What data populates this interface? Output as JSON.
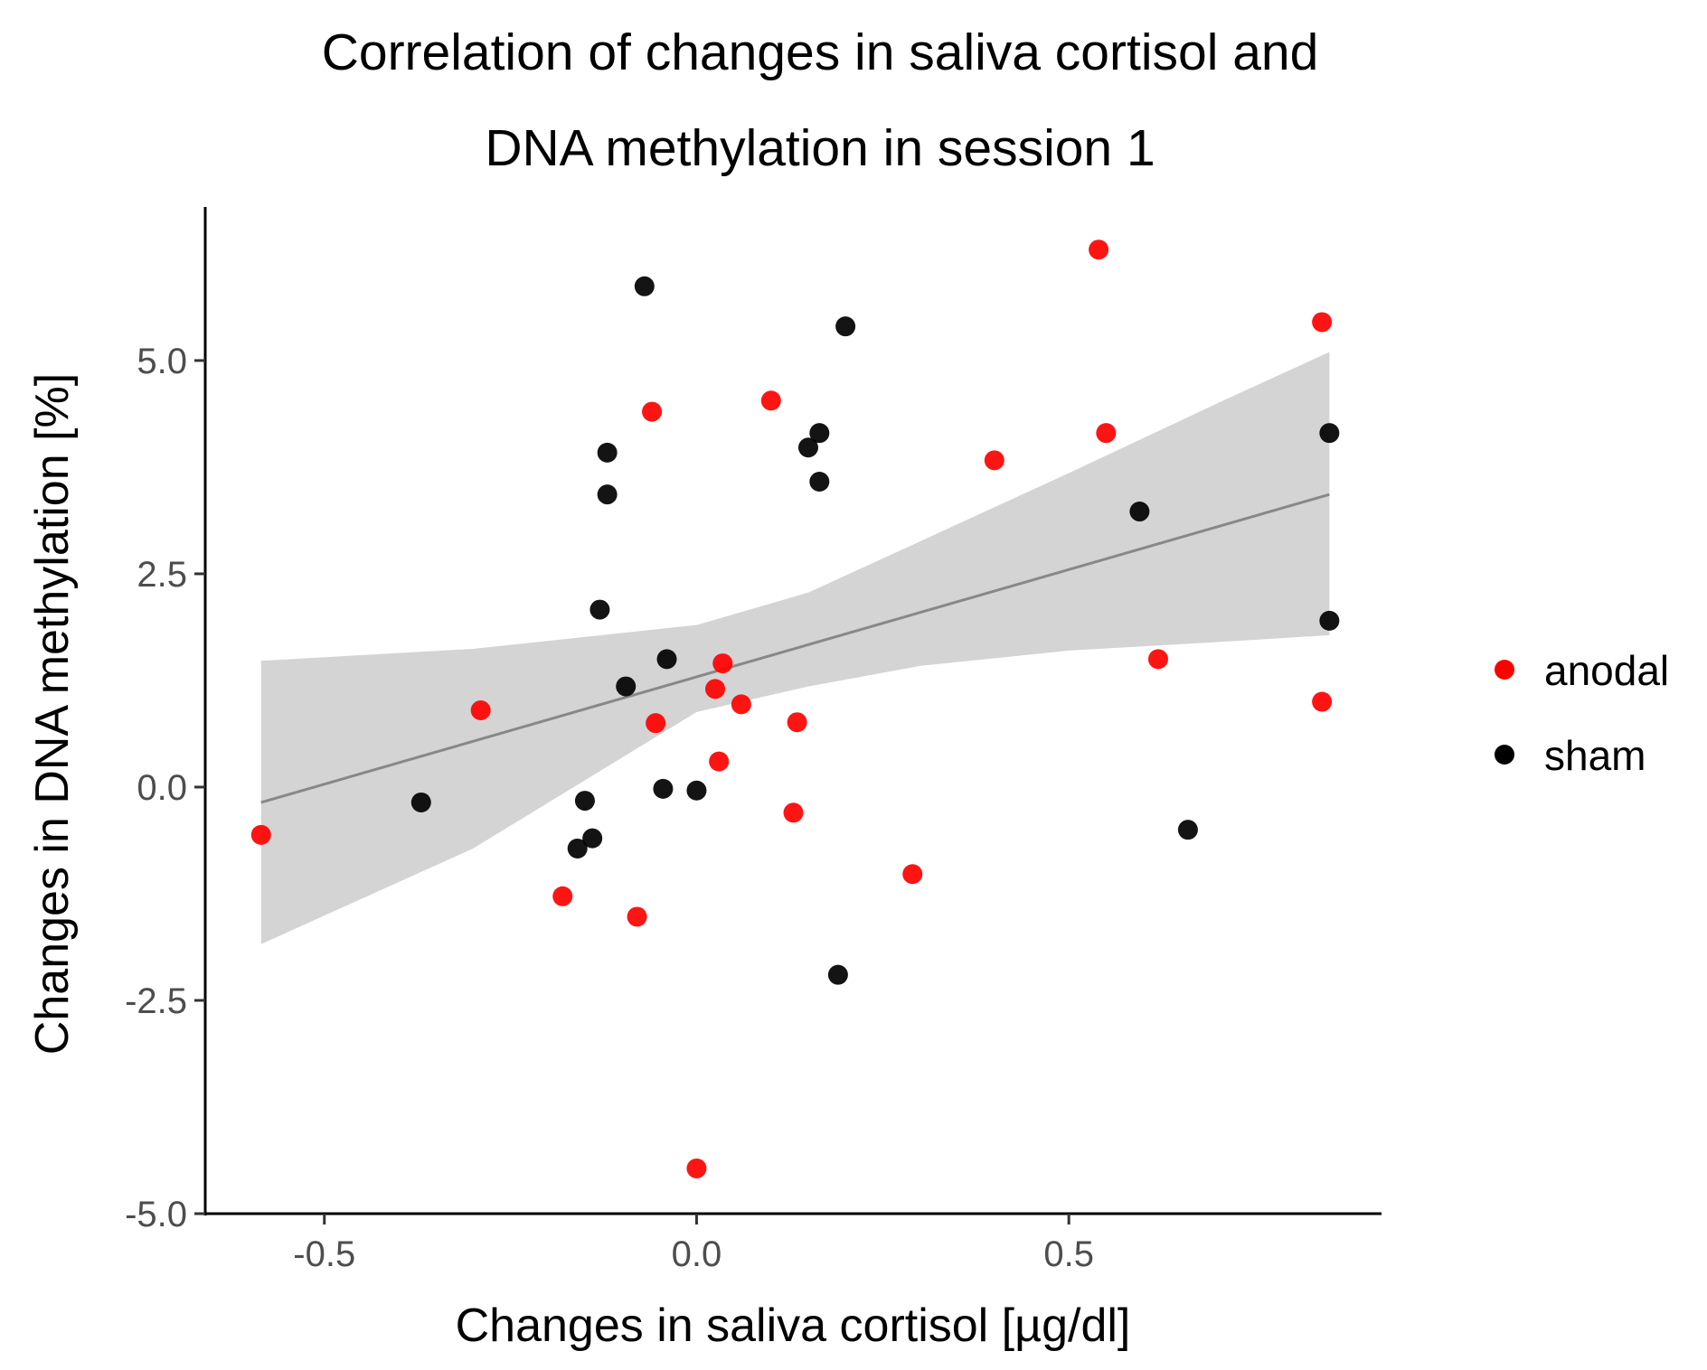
{
  "chart_data": {
    "type": "scatter",
    "title": [
      "Correlation of changes in saliva cortisol and",
      "DNA methylation in session 1"
    ],
    "xlabel": "Changes in saliva cortisol [µg/dl]",
    "ylabel": "Changes in DNA methylation [%]",
    "xlim": [
      -0.66,
      0.92
    ],
    "ylim": [
      -5.0,
      6.8
    ],
    "xticks": [
      -0.5,
      0.0,
      0.5
    ],
    "xtick_labels": [
      "-0.5",
      "0.0",
      "0.5"
    ],
    "yticks": [
      -5.0,
      -2.5,
      0.0,
      2.5,
      5.0
    ],
    "ytick_labels": [
      "-5.0",
      "-2.5",
      "0.0",
      "2.5",
      "5.0"
    ],
    "grid": false,
    "legend_position": "right",
    "series": [
      {
        "name": "anodal",
        "color": "#ff0000",
        "points": [
          [
            -0.585,
            -0.56
          ],
          [
            -0.29,
            0.9
          ],
          [
            -0.18,
            -1.28
          ],
          [
            -0.08,
            -1.52
          ],
          [
            -0.06,
            4.4
          ],
          [
            -0.055,
            0.75
          ],
          [
            0.0,
            -4.47
          ],
          [
            0.025,
            1.15
          ],
          [
            0.03,
            0.3
          ],
          [
            0.035,
            1.45
          ],
          [
            0.06,
            0.97
          ],
          [
            0.1,
            4.53
          ],
          [
            0.13,
            -0.3
          ],
          [
            0.135,
            0.76
          ],
          [
            0.29,
            -1.02
          ],
          [
            0.4,
            3.83
          ],
          [
            0.54,
            6.3
          ],
          [
            0.55,
            4.15
          ],
          [
            0.62,
            1.5
          ],
          [
            0.84,
            5.45
          ],
          [
            0.84,
            1.0
          ]
        ]
      },
      {
        "name": "sham",
        "color": "#000000",
        "points": [
          [
            -0.37,
            -0.18
          ],
          [
            -0.16,
            -0.72
          ],
          [
            -0.15,
            -0.16
          ],
          [
            -0.14,
            -0.6
          ],
          [
            -0.13,
            2.08
          ],
          [
            -0.12,
            3.92
          ],
          [
            -0.12,
            3.43
          ],
          [
            -0.095,
            1.18
          ],
          [
            -0.07,
            5.87
          ],
          [
            -0.045,
            -0.02
          ],
          [
            -0.04,
            1.5
          ],
          [
            0.0,
            -0.04
          ],
          [
            0.15,
            3.98
          ],
          [
            0.165,
            4.15
          ],
          [
            0.165,
            3.58
          ],
          [
            0.19,
            -2.2
          ],
          [
            0.2,
            5.4
          ],
          [
            0.595,
            3.23
          ],
          [
            0.66,
            -0.5
          ],
          [
            0.85,
            4.15
          ],
          [
            0.85,
            1.95
          ]
        ]
      }
    ],
    "regression": {
      "x_range": [
        -0.585,
        0.85
      ],
      "line": [
        [
          -0.585,
          -0.18
        ],
        [
          0.85,
          3.43
        ]
      ],
      "ci_band": {
        "x": [
          -0.585,
          -0.3,
          0.0,
          0.15,
          0.3,
          0.5,
          0.7,
          0.85
        ],
        "upper": [
          1.48,
          1.62,
          1.9,
          2.28,
          2.88,
          3.68,
          4.5,
          5.1
        ],
        "lower": [
          -1.84,
          -0.72,
          0.88,
          1.18,
          1.42,
          1.6,
          1.7,
          1.78
        ]
      },
      "line_color": "#888888",
      "band_color": "#cccccc"
    }
  }
}
